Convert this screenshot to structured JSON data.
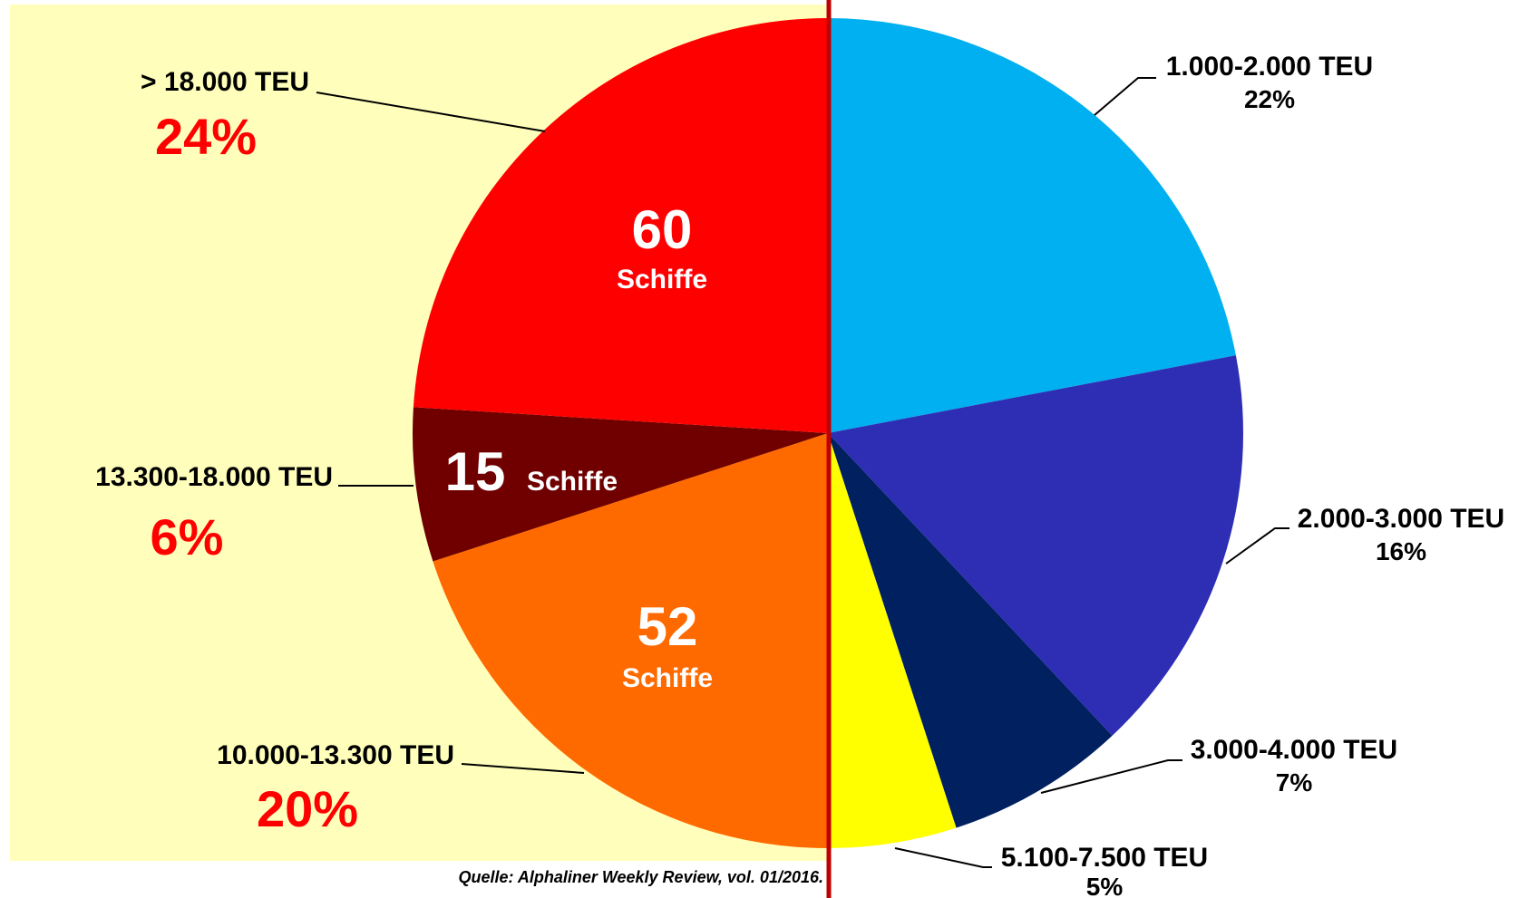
{
  "chart_data": {
    "type": "pie",
    "categories": [
      "1.000-2.000 TEU",
      "2.000-3.000 TEU",
      "3.000-4.000 TEU",
      "5.100-7.500 TEU",
      "10.000-13.300 TEU",
      "13.300-18.000 TEU",
      "> 18.000 TEU"
    ],
    "values": [
      22,
      16,
      7,
      5,
      20,
      6,
      24
    ],
    "value_labels": [
      "22%",
      "16%",
      "7%",
      "5%",
      "20%",
      "6%",
      "24%"
    ],
    "colors": [
      "#00b0f0",
      "#2e2eb4",
      "#002060",
      "#ffff00",
      "#ff6a00",
      "#700000",
      "#ff0000"
    ],
    "counts": [
      null,
      null,
      null,
      null,
      52,
      15,
      60
    ],
    "count_label": "Schiffe",
    "source": "Quelle: Alphaliner Weekly Review, vol. 01/2016."
  }
}
